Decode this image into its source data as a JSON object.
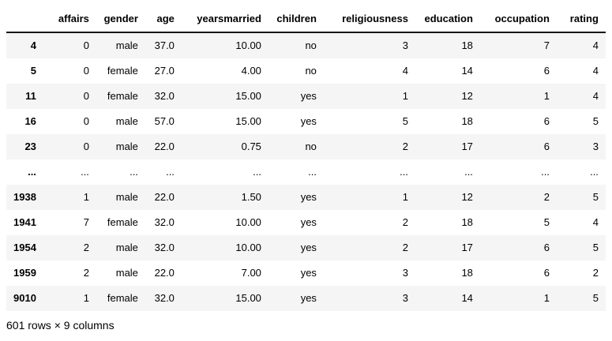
{
  "table": {
    "columns": [
      "affairs",
      "gender",
      "age",
      "yearsmarried",
      "children",
      "religiousness",
      "education",
      "occupation",
      "rating"
    ],
    "rows": [
      {
        "index": "4",
        "cells": [
          "0",
          "male",
          "37.0",
          "10.00",
          "no",
          "3",
          "18",
          "7",
          "4"
        ]
      },
      {
        "index": "5",
        "cells": [
          "0",
          "female",
          "27.0",
          "4.00",
          "no",
          "4",
          "14",
          "6",
          "4"
        ]
      },
      {
        "index": "11",
        "cells": [
          "0",
          "female",
          "32.0",
          "15.00",
          "yes",
          "1",
          "12",
          "1",
          "4"
        ]
      },
      {
        "index": "16",
        "cells": [
          "0",
          "male",
          "57.0",
          "15.00",
          "yes",
          "5",
          "18",
          "6",
          "5"
        ]
      },
      {
        "index": "23",
        "cells": [
          "0",
          "male",
          "22.0",
          "0.75",
          "no",
          "2",
          "17",
          "6",
          "3"
        ]
      },
      {
        "index": "...",
        "cells": [
          "...",
          "...",
          "...",
          "...",
          "...",
          "...",
          "...",
          "...",
          "..."
        ]
      },
      {
        "index": "1938",
        "cells": [
          "1",
          "male",
          "22.0",
          "1.50",
          "yes",
          "1",
          "12",
          "2",
          "5"
        ]
      },
      {
        "index": "1941",
        "cells": [
          "7",
          "female",
          "32.0",
          "10.00",
          "yes",
          "2",
          "18",
          "5",
          "4"
        ]
      },
      {
        "index": "1954",
        "cells": [
          "2",
          "male",
          "32.0",
          "10.00",
          "yes",
          "2",
          "17",
          "6",
          "5"
        ]
      },
      {
        "index": "1959",
        "cells": [
          "2",
          "male",
          "22.0",
          "7.00",
          "yes",
          "3",
          "18",
          "6",
          "2"
        ]
      },
      {
        "index": "9010",
        "cells": [
          "1",
          "female",
          "32.0",
          "15.00",
          "yes",
          "3",
          "14",
          "1",
          "5"
        ]
      }
    ],
    "summary": "601 rows × 9 columns"
  },
  "colors": {
    "stripe": "#f5f5f5",
    "header_border": "#161616",
    "text": "#000000"
  }
}
